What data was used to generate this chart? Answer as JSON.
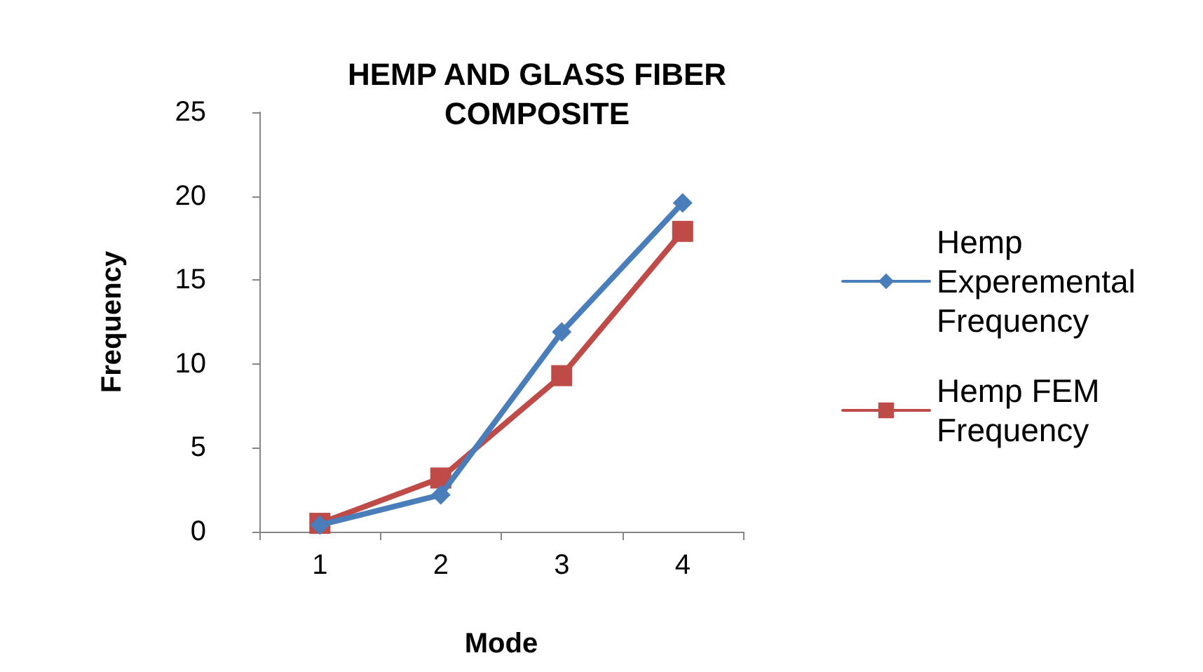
{
  "chart_data": {
    "type": "line",
    "title": "HEMP AND GLASS FIBER\nCOMPOSITE",
    "xlabel": "Mode",
    "ylabel": "Frequency",
    "categories": [
      "1",
      "2",
      "3",
      "4"
    ],
    "series": [
      {
        "name": "Hemp Experemental Frequency",
        "color": "#4a7ebb",
        "marker": "diamond",
        "values": [
          0.4,
          2.2,
          11.9,
          19.6
        ]
      },
      {
        "name": "Hemp FEM Frequency",
        "color": "#be4b48",
        "marker": "square",
        "values": [
          0.5,
          3.2,
          9.3,
          17.9
        ]
      }
    ],
    "ylim": [
      0,
      25
    ],
    "yticks": [
      0,
      5,
      10,
      15,
      20,
      25
    ],
    "grid": false,
    "legend": "right"
  }
}
